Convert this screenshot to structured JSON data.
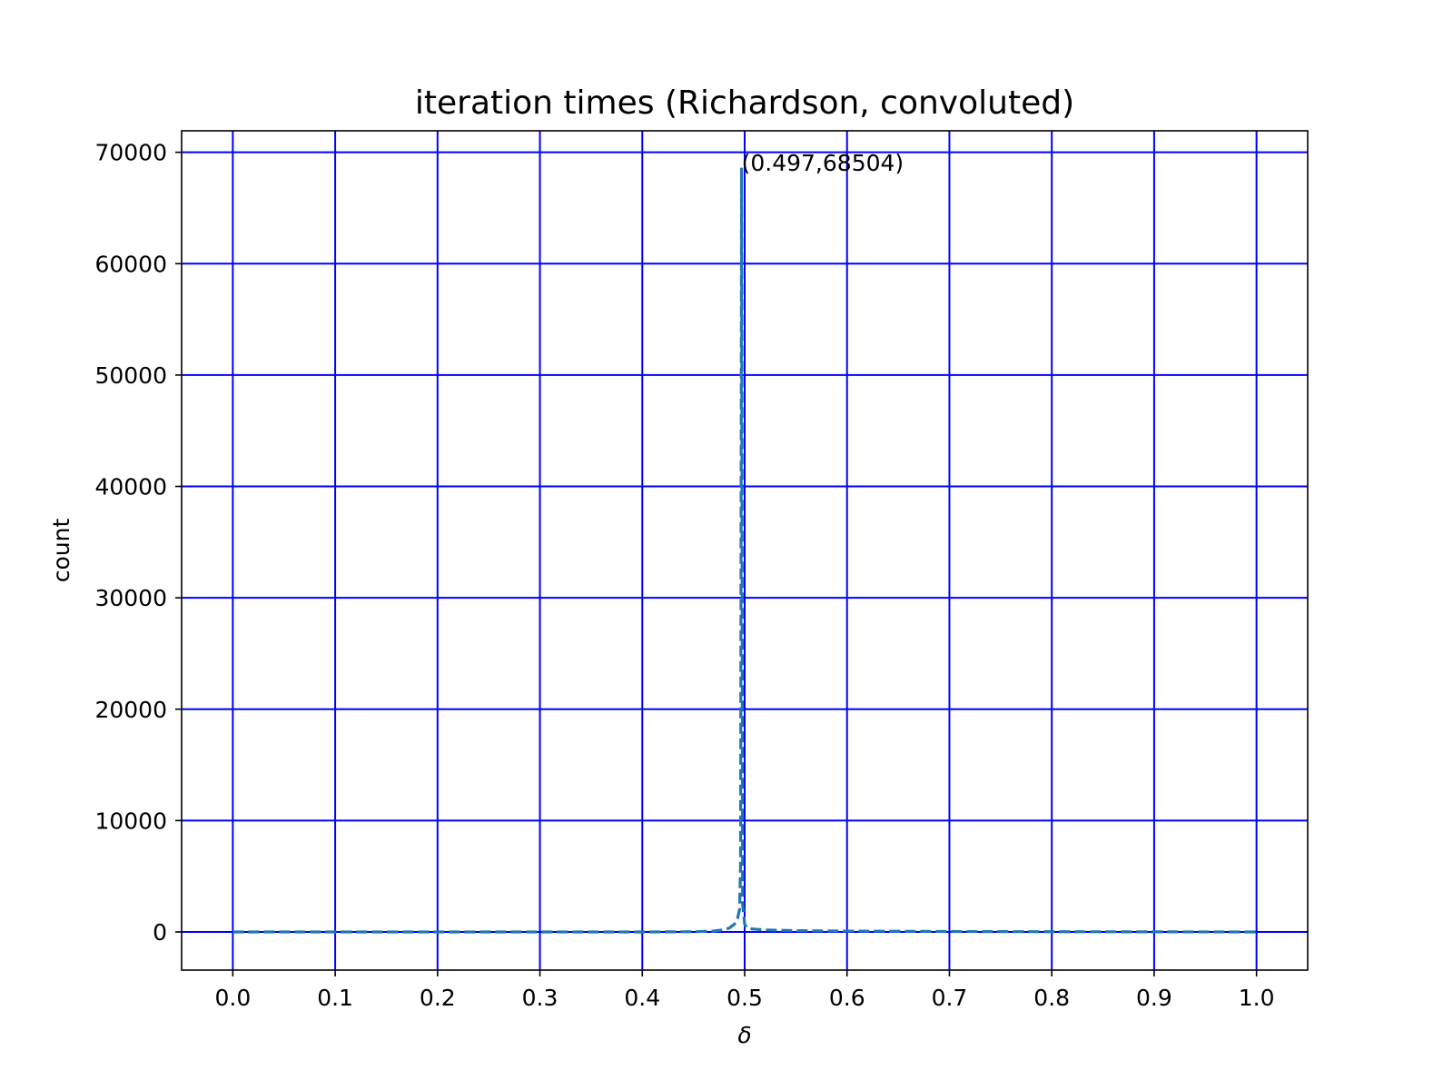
{
  "chart_data": {
    "type": "line",
    "title": "iteration times (Richardson, convoluted)",
    "xlabel": "δ",
    "ylabel": "count",
    "xlim": [
      -0.05,
      1.05
    ],
    "ylim": [
      -3425,
      71929
    ],
    "xticks": [
      0.0,
      0.1,
      0.2,
      0.3,
      0.4,
      0.5,
      0.6,
      0.7,
      0.8,
      0.9,
      1.0
    ],
    "xtick_labels": [
      "0.0",
      "0.1",
      "0.2",
      "0.3",
      "0.4",
      "0.5",
      "0.6",
      "0.7",
      "0.8",
      "0.9",
      "1.0"
    ],
    "yticks": [
      0,
      10000,
      20000,
      30000,
      40000,
      50000,
      60000,
      70000
    ],
    "ytick_labels": [
      "0",
      "10000",
      "20000",
      "30000",
      "40000",
      "50000",
      "60000",
      "70000"
    ],
    "grid": true,
    "grid_color": "#0000ff",
    "line_color": "#1f77b4",
    "line_style": "dashed",
    "series": [
      {
        "x": [
          0.0,
          0.1,
          0.2,
          0.3,
          0.4,
          0.45,
          0.47,
          0.48,
          0.485,
          0.49,
          0.493,
          0.495,
          0.496,
          0.497,
          0.498,
          0.5,
          0.502,
          0.505,
          0.51,
          0.52,
          0.55,
          0.6,
          0.7,
          0.8,
          0.9,
          1.0
        ],
        "y": [
          0,
          0,
          0,
          0,
          0,
          20,
          80,
          200,
          350,
          700,
          1200,
          2000,
          6000,
          68504,
          2500,
          700,
          400,
          300,
          250,
          180,
          120,
          80,
          40,
          20,
          10,
          0
        ]
      }
    ],
    "annotations": [
      {
        "text": "(0.497,68504)",
        "x": 0.497,
        "y": 68504
      }
    ]
  }
}
